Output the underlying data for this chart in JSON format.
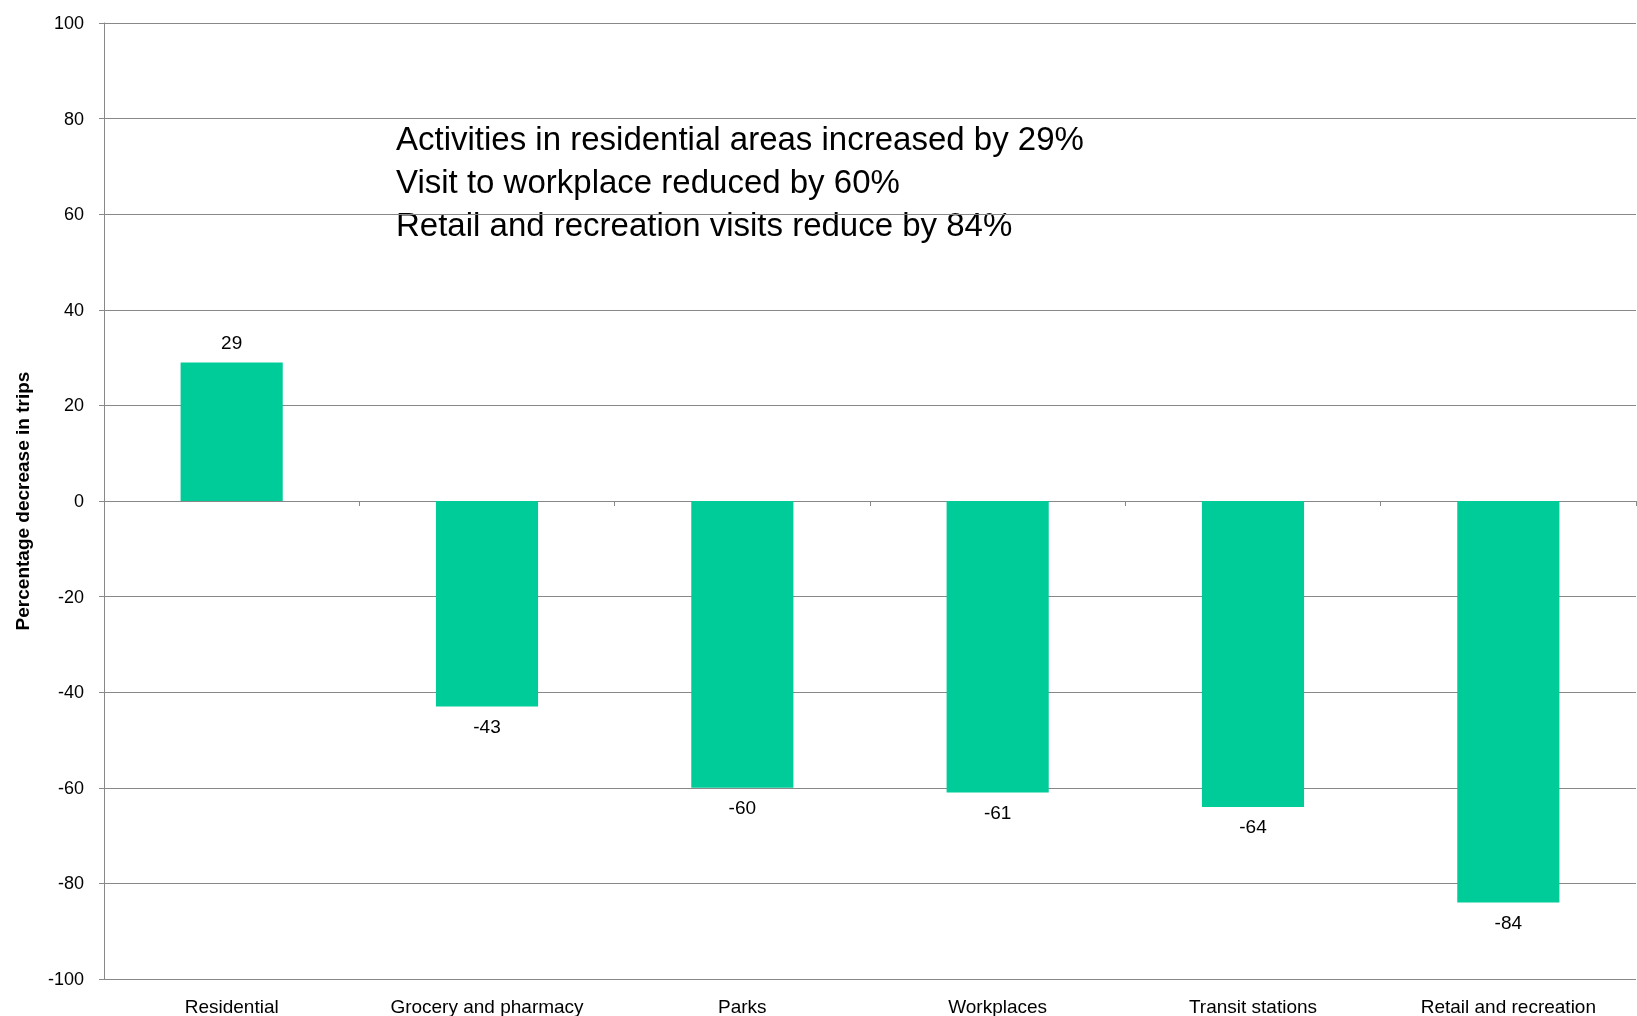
{
  "chart_data": {
    "type": "bar",
    "ylabel": "Percentage decrease in trips",
    "categories": [
      "Residential",
      "Grocery and pharmacy",
      "Parks",
      "Workplaces",
      "Transit stations",
      "Retail and recreation"
    ],
    "values": [
      29,
      -43,
      -60,
      -61,
      -64,
      -84
    ],
    "color": "#00cc99",
    "ylim": [
      -100,
      100
    ],
    "yticks": [
      -100,
      -80,
      -60,
      -40,
      -20,
      0,
      20,
      40,
      60,
      80,
      100
    ],
    "grid": "y",
    "data_labels": true,
    "annotations": [
      "Activities in residential areas increased by 29%",
      "Visit to workplace reduced by 60%",
      "Retail and recreation visits reduce by 84%"
    ]
  }
}
